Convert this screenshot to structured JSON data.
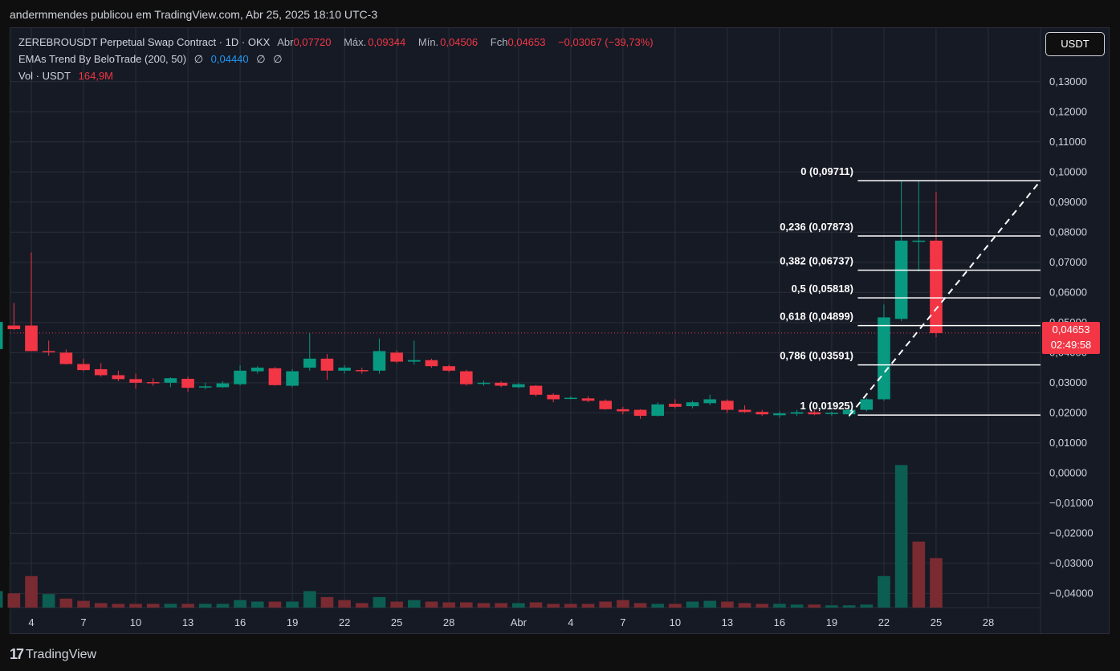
{
  "header": {
    "publisher": "andermmendes publicou em TradingView.com, Abr 25, 2025 18:10 UTC-3"
  },
  "legend": {
    "symbol": "ZEREBROUSDT Perpetual Swap Contract · 1D · OKX",
    "open_label": "Abr",
    "open": "0,07720",
    "high_label": "Máx.",
    "high": "0,09344",
    "low_label": "Mín.",
    "low": "0,04506",
    "close_label": "Fch",
    "close": "0,04653",
    "change": "−0,03067 (−39,73%)",
    "indicator": "EMAs Trend By BeloTrade (200, 50)",
    "indicator_null_1": "∅",
    "indicator_value": "0,04440",
    "indicator_null_2": "∅",
    "indicator_null_3": "∅",
    "volume_label": "Vol · USDT",
    "volume_value": "164,9M"
  },
  "currency_button": "USDT",
  "price_tag": {
    "price": "0,04653",
    "countdown": "02:49:58"
  },
  "brand": {
    "logo": "17",
    "name": "TradingView"
  },
  "colors": {
    "up": "#089981",
    "down": "#f23645",
    "bg": "#161a25",
    "grid": "#2a2e39",
    "fib": "#ffffff"
  },
  "chart_data": {
    "type": "candlestick",
    "y_axis_ticks": [
      "0,13000",
      "0,12000",
      "0,11000",
      "0,10000",
      "0,09000",
      "0,08000",
      "0,07000",
      "0,06000",
      "0,05000",
      "0,04000",
      "0,03000",
      "0,02000",
      "0,01000",
      "0,00000",
      "−0,01000",
      "−0,02000",
      "−0,03000",
      "−0,04000"
    ],
    "y_tick_values": [
      0.13,
      0.12,
      0.11,
      0.1,
      0.09,
      0.08,
      0.07,
      0.06,
      0.05,
      0.04,
      0.03,
      0.02,
      0.01,
      0,
      -0.01,
      -0.02,
      -0.03,
      -0.04
    ],
    "ylim": [
      -0.0447,
      0.1478
    ],
    "x_ticks": [
      {
        "label": "4",
        "day": 3
      },
      {
        "label": "7",
        "day": 6
      },
      {
        "label": "10",
        "day": 9
      },
      {
        "label": "13",
        "day": 12
      },
      {
        "label": "16",
        "day": 15
      },
      {
        "label": "19",
        "day": 18
      },
      {
        "label": "22",
        "day": 21
      },
      {
        "label": "25",
        "day": 24
      },
      {
        "label": "28",
        "day": 27
      },
      {
        "label": "Abr",
        "day": 31
      },
      {
        "label": "4",
        "day": 34
      },
      {
        "label": "7",
        "day": 37
      },
      {
        "label": "10",
        "day": 40
      },
      {
        "label": "13",
        "day": 43
      },
      {
        "label": "16",
        "day": 46
      },
      {
        "label": "19",
        "day": 49
      },
      {
        "label": "22",
        "day": 52
      },
      {
        "label": "25",
        "day": 55
      },
      {
        "label": "28",
        "day": 58
      }
    ],
    "x_range": [
      1.8,
      61.0
    ],
    "candles": [
      {
        "o": 0.0412,
        "h": 0.051,
        "l": 0.0365,
        "c": 0.0502
      },
      {
        "o": 0.049,
        "h": 0.0565,
        "l": 0.0475,
        "c": 0.0478
      },
      {
        "o": 0.049,
        "h": 0.0733,
        "l": 0.041,
        "c": 0.0405
      },
      {
        "o": 0.0405,
        "h": 0.044,
        "l": 0.039,
        "c": 0.0402
      },
      {
        "o": 0.04,
        "h": 0.041,
        "l": 0.036,
        "c": 0.0362
      },
      {
        "o": 0.0362,
        "h": 0.038,
        "l": 0.0338,
        "c": 0.0342
      },
      {
        "o": 0.0345,
        "h": 0.0365,
        "l": 0.032,
        "c": 0.0325
      },
      {
        "o": 0.0325,
        "h": 0.034,
        "l": 0.0305,
        "c": 0.0312
      },
      {
        "o": 0.0312,
        "h": 0.033,
        "l": 0.028,
        "c": 0.03
      },
      {
        "o": 0.0302,
        "h": 0.0315,
        "l": 0.029,
        "c": 0.03
      },
      {
        "o": 0.03,
        "h": 0.0318,
        "l": 0.0285,
        "c": 0.0315
      },
      {
        "o": 0.0313,
        "h": 0.032,
        "l": 0.027,
        "c": 0.0283
      },
      {
        "o": 0.0285,
        "h": 0.03,
        "l": 0.0278,
        "c": 0.0288
      },
      {
        "o": 0.0285,
        "h": 0.0305,
        "l": 0.0283,
        "c": 0.0298
      },
      {
        "o": 0.0295,
        "h": 0.0358,
        "l": 0.029,
        "c": 0.034
      },
      {
        "o": 0.0338,
        "h": 0.0355,
        "l": 0.033,
        "c": 0.035
      },
      {
        "o": 0.0348,
        "h": 0.0352,
        "l": 0.029,
        "c": 0.0292
      },
      {
        "o": 0.029,
        "h": 0.0345,
        "l": 0.0285,
        "c": 0.0338
      },
      {
        "o": 0.035,
        "h": 0.0465,
        "l": 0.034,
        "c": 0.038
      },
      {
        "o": 0.038,
        "h": 0.0395,
        "l": 0.031,
        "c": 0.034
      },
      {
        "o": 0.034,
        "h": 0.0358,
        "l": 0.033,
        "c": 0.035
      },
      {
        "o": 0.0342,
        "h": 0.035,
        "l": 0.033,
        "c": 0.034
      },
      {
        "o": 0.034,
        "h": 0.0447,
        "l": 0.033,
        "c": 0.0405
      },
      {
        "o": 0.04,
        "h": 0.0407,
        "l": 0.0365,
        "c": 0.037
      },
      {
        "o": 0.037,
        "h": 0.044,
        "l": 0.036,
        "c": 0.0375
      },
      {
        "o": 0.0375,
        "h": 0.038,
        "l": 0.035,
        "c": 0.0355
      },
      {
        "o": 0.0355,
        "h": 0.036,
        "l": 0.0335,
        "c": 0.034
      },
      {
        "o": 0.0338,
        "h": 0.0343,
        "l": 0.029,
        "c": 0.0295
      },
      {
        "o": 0.0298,
        "h": 0.0307,
        "l": 0.029,
        "c": 0.03
      },
      {
        "o": 0.03,
        "h": 0.0305,
        "l": 0.0285,
        "c": 0.029
      },
      {
        "o": 0.0285,
        "h": 0.03,
        "l": 0.0282,
        "c": 0.0295
      },
      {
        "o": 0.029,
        "h": 0.0292,
        "l": 0.0255,
        "c": 0.026
      },
      {
        "o": 0.026,
        "h": 0.0265,
        "l": 0.0235,
        "c": 0.0245
      },
      {
        "o": 0.025,
        "h": 0.0255,
        "l": 0.0245,
        "c": 0.025
      },
      {
        "o": 0.0248,
        "h": 0.0255,
        "l": 0.0235,
        "c": 0.024
      },
      {
        "o": 0.024,
        "h": 0.0245,
        "l": 0.021,
        "c": 0.0212
      },
      {
        "o": 0.0212,
        "h": 0.022,
        "l": 0.0195,
        "c": 0.0205
      },
      {
        "o": 0.021,
        "h": 0.0212,
        "l": 0.018,
        "c": 0.019
      },
      {
        "o": 0.019,
        "h": 0.0235,
        "l": 0.0188,
        "c": 0.0228
      },
      {
        "o": 0.023,
        "h": 0.0245,
        "l": 0.0215,
        "c": 0.022
      },
      {
        "o": 0.0222,
        "h": 0.024,
        "l": 0.0215,
        "c": 0.0235
      },
      {
        "o": 0.0232,
        "h": 0.026,
        "l": 0.0225,
        "c": 0.0245
      },
      {
        "o": 0.024,
        "h": 0.0245,
        "l": 0.02,
        "c": 0.021
      },
      {
        "o": 0.021,
        "h": 0.0225,
        "l": 0.02,
        "c": 0.0203
      },
      {
        "o": 0.0203,
        "h": 0.021,
        "l": 0.019,
        "c": 0.0195
      },
      {
        "o": 0.0192,
        "h": 0.0205,
        "l": 0.0183,
        "c": 0.0198
      },
      {
        "o": 0.0197,
        "h": 0.021,
        "l": 0.019,
        "c": 0.0202
      },
      {
        "o": 0.0202,
        "h": 0.021,
        "l": 0.0192,
        "c": 0.0195
      },
      {
        "o": 0.0197,
        "h": 0.0205,
        "l": 0.019,
        "c": 0.02
      },
      {
        "o": 0.0195,
        "h": 0.022,
        "l": 0.0185,
        "c": 0.021
      },
      {
        "o": 0.021,
        "h": 0.025,
        "l": 0.0205,
        "c": 0.0245
      },
      {
        "o": 0.0245,
        "h": 0.056,
        "l": 0.024,
        "c": 0.0517
      },
      {
        "o": 0.0512,
        "h": 0.0971,
        "l": 0.0505,
        "c": 0.0772
      },
      {
        "o": 0.0772,
        "h": 0.0971,
        "l": 0.067,
        "c": 0.0772
      },
      {
        "o": 0.0772,
        "h": 0.0934,
        "l": 0.0451,
        "c": 0.0465
      }
    ],
    "volume_scale_max": 1.0,
    "volumes": [
      {
        "v": 0.11,
        "up": true
      },
      {
        "v": 0.095,
        "up": false
      },
      {
        "v": 0.21,
        "up": false
      },
      {
        "v": 0.09,
        "up": true
      },
      {
        "v": 0.06,
        "up": false
      },
      {
        "v": 0.045,
        "up": false
      },
      {
        "v": 0.03,
        "up": false
      },
      {
        "v": 0.025,
        "up": false
      },
      {
        "v": 0.025,
        "up": false
      },
      {
        "v": 0.025,
        "up": false
      },
      {
        "v": 0.025,
        "up": true
      },
      {
        "v": 0.025,
        "up": false
      },
      {
        "v": 0.025,
        "up": true
      },
      {
        "v": 0.025,
        "up": true
      },
      {
        "v": 0.05,
        "up": true
      },
      {
        "v": 0.04,
        "up": true
      },
      {
        "v": 0.04,
        "up": false
      },
      {
        "v": 0.04,
        "up": true
      },
      {
        "v": 0.11,
        "up": true
      },
      {
        "v": 0.07,
        "up": false
      },
      {
        "v": 0.05,
        "up": false
      },
      {
        "v": 0.03,
        "up": false
      },
      {
        "v": 0.07,
        "up": true
      },
      {
        "v": 0.04,
        "up": false
      },
      {
        "v": 0.05,
        "up": true
      },
      {
        "v": 0.04,
        "up": false
      },
      {
        "v": 0.035,
        "up": false
      },
      {
        "v": 0.035,
        "up": false
      },
      {
        "v": 0.03,
        "up": false
      },
      {
        "v": 0.03,
        "up": false
      },
      {
        "v": 0.03,
        "up": true
      },
      {
        "v": 0.035,
        "up": false
      },
      {
        "v": 0.025,
        "up": false
      },
      {
        "v": 0.025,
        "up": false
      },
      {
        "v": 0.025,
        "up": false
      },
      {
        "v": 0.04,
        "up": false
      },
      {
        "v": 0.05,
        "up": false
      },
      {
        "v": 0.03,
        "up": false
      },
      {
        "v": 0.025,
        "up": true
      },
      {
        "v": 0.025,
        "up": false
      },
      {
        "v": 0.04,
        "up": true
      },
      {
        "v": 0.045,
        "up": true
      },
      {
        "v": 0.04,
        "up": false
      },
      {
        "v": 0.03,
        "up": false
      },
      {
        "v": 0.025,
        "up": false
      },
      {
        "v": 0.025,
        "up": true
      },
      {
        "v": 0.02,
        "up": true
      },
      {
        "v": 0.02,
        "up": false
      },
      {
        "v": 0.015,
        "up": true
      },
      {
        "v": 0.015,
        "up": true
      },
      {
        "v": 0.02,
        "up": true
      },
      {
        "v": 0.21,
        "up": true
      },
      {
        "v": 0.95,
        "up": true
      },
      {
        "v": 0.44,
        "up": false
      },
      {
        "v": 0.33,
        "up": false
      }
    ],
    "fib_levels": [
      {
        "label": "0 (0,09711)",
        "value": 0.09711
      },
      {
        "label": "0,236 (0,07873)",
        "value": 0.07873
      },
      {
        "label": "0,382 (0,06737)",
        "value": 0.06737
      },
      {
        "label": "0,5 (0,05818)",
        "value": 0.05818
      },
      {
        "label": "0,618 (0,04899)",
        "value": 0.04899
      },
      {
        "label": "0,786 (0,03591)",
        "value": 0.03591
      },
      {
        "label": "1 (0,01925)",
        "value": 0.01925
      }
    ],
    "fib_x_range": [
      50.5,
      61.0
    ],
    "trendline": {
      "from": {
        "day": 50.0,
        "value": 0.019
      },
      "to": {
        "day": 61.0,
        "value": 0.0971
      }
    },
    "last_price": 0.04653
  }
}
